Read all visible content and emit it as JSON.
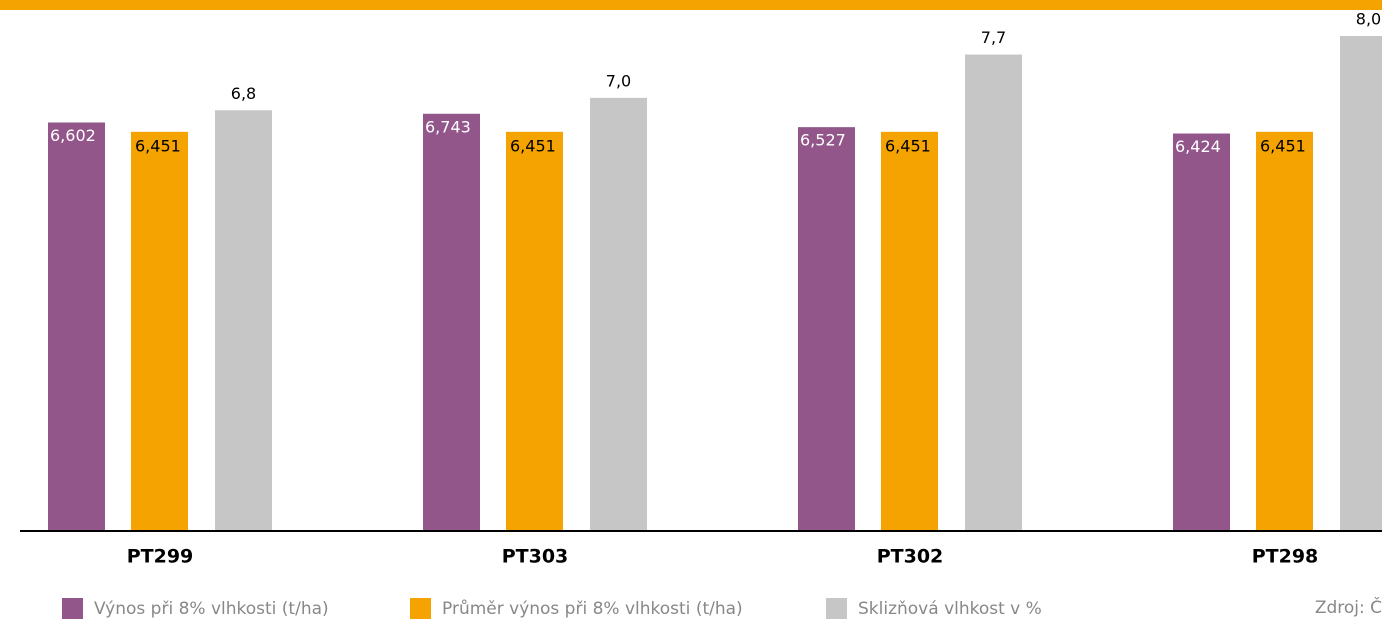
{
  "chart_data": {
    "type": "bar",
    "categories": [
      "PT299",
      "PT303",
      "PT302",
      "PT298"
    ],
    "series": [
      {
        "name": "Výnos při 8% vlhkosti (t/ha)",
        "color": "#93568a",
        "values": [
          6.602,
          6.743,
          6.527,
          6.424
        ],
        "value_labels": [
          "6,602",
          "6,743",
          "6,527",
          "6,424"
        ]
      },
      {
        "name": "Průměr výnos při 8% vlhkosti (t/ha)",
        "color": "#f5a300",
        "values": [
          6.451,
          6.451,
          6.451,
          6.451
        ],
        "value_labels": [
          "6,451",
          "6,451",
          "6,451",
          "6,451"
        ]
      },
      {
        "name": "Sklizňová vlhkost v %",
        "color": "#c6c6c6",
        "values": [
          6.8,
          7.0,
          7.7,
          8.0
        ],
        "value_labels": [
          "6,8",
          "7,0",
          "7,7",
          "8,0"
        ]
      }
    ],
    "ylim": [
      0,
      8
    ],
    "source": "Zdroj: Č"
  }
}
